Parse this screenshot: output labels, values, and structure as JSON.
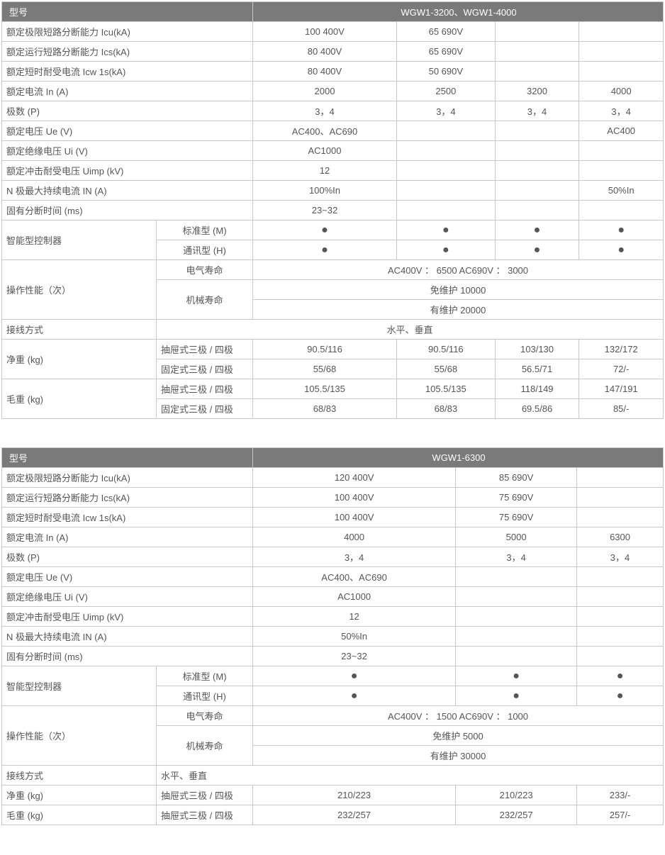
{
  "table1": {
    "header_label": "型号",
    "header_model": "WGW1-3200、WGW1-4000",
    "rows": {
      "icu_label": "额定极限短路分断能力 Icu(kA)",
      "icu": [
        "100   400V",
        "65   690V",
        "",
        ""
      ],
      "ics_label": "额定运行短路分断能力 Ics(kA)",
      "ics": [
        "80   400V",
        "65  690V",
        "",
        ""
      ],
      "icw_label": "额定短时耐受电流 Icw 1s(kA)",
      "icw": [
        "80   400V",
        "50   690V",
        "",
        ""
      ],
      "in_label": "额定电流 In (A)",
      "in": [
        "2000",
        "2500",
        "3200",
        "4000"
      ],
      "poles_label": "极数 (P)",
      "poles": [
        "3，4",
        "3，4",
        "3，4",
        "3，4"
      ],
      "ue_label": "额定电压 Ue (V)",
      "ue": [
        "AC400、AC690",
        "",
        "",
        "AC400"
      ],
      "ui_label": "额定绝缘电压 Ui (V)",
      "ui": [
        "AC1000",
        "",
        "",
        ""
      ],
      "uimp_label": "额定冲击耐受电压 Uimp (kV)",
      "uimp": [
        "12",
        "",
        "",
        ""
      ],
      "in_n_label": "N 极最大持续电流 IN (A)",
      "in_n": [
        "100%In",
        "",
        "",
        "50%In"
      ],
      "break_time_label": "固有分断时间 (ms)",
      "break_time": [
        "23~32",
        "",
        "",
        ""
      ],
      "controller_label": "智能型控制器",
      "controller_std_label": "标准型 (M)",
      "controller_std": [
        "●",
        "●",
        "●",
        "●"
      ],
      "controller_comm_label": "通讯型 (H)",
      "controller_comm": [
        "●",
        "●",
        "●",
        "●"
      ],
      "perf_label": "操作性能（次）",
      "elec_life_label": "电气寿命",
      "elec_life": "AC400V ： 6500    AC690V ： 3000",
      "mech_life_label": "机械寿命",
      "mech_life1": "免维护 10000",
      "mech_life2": "有维护 20000",
      "wiring_label": "接线方式",
      "wiring": "水平、垂直",
      "net_wt_label": "净重 (kg)",
      "net_wt_drawer_label": "抽屉式三极 / 四极",
      "net_wt_drawer": [
        "90.5/116",
        "90.5/116",
        "103/130",
        "132/172"
      ],
      "net_wt_fixed_label": "固定式三极 / 四极",
      "net_wt_fixed": [
        "55/68",
        "55/68",
        "56.5/71",
        "72/-"
      ],
      "gross_wt_label": "毛重 (kg)",
      "gross_wt_drawer_label": "抽屉式三极 / 四极",
      "gross_wt_drawer": [
        "105.5/135",
        "105.5/135",
        "118/149",
        "147/191"
      ],
      "gross_wt_fixed_label": "固定式三极 / 四极",
      "gross_wt_fixed": [
        "68/83",
        "68/83",
        "69.5/86",
        "85/-"
      ]
    }
  },
  "table2": {
    "header_label": "型号",
    "header_model": "WGW1-6300",
    "rows": {
      "icu_label": "额定极限短路分断能力 Icu(kA)",
      "icu": [
        "120   400V",
        "85   690V",
        ""
      ],
      "ics_label": "额定运行短路分断能力 Ics(kA)",
      "ics": [
        "100   400V",
        "75   690V",
        ""
      ],
      "icw_label": "额定短时耐受电流 Icw 1s(kA)",
      "icw": [
        "100   400V",
        "75   690V",
        ""
      ],
      "in_label": "额定电流 In (A)",
      "in": [
        "4000",
        "5000",
        "6300"
      ],
      "poles_label": "极数 (P)",
      "poles": [
        "3，4",
        "3，4",
        "3，4"
      ],
      "ue_label": "额定电压 Ue (V)",
      "ue": [
        "AC400、AC690",
        "",
        ""
      ],
      "ui_label": "额定绝缘电压 Ui (V)",
      "ui": [
        "AC1000",
        "",
        ""
      ],
      "uimp_label": "额定冲击耐受电压 Uimp (kV)",
      "uimp": [
        "12",
        "",
        ""
      ],
      "in_n_label": "N 极最大持续电流 IN (A)",
      "in_n": [
        "50%In",
        "",
        ""
      ],
      "break_time_label": "固有分断时间 (ms)",
      "break_time": [
        "23~32",
        "",
        ""
      ],
      "controller_label": "智能型控制器",
      "controller_std_label": "标准型 (M)",
      "controller_std": [
        "●",
        "●",
        "●"
      ],
      "controller_comm_label": "通讯型 (H)",
      "controller_comm": [
        "●",
        "●",
        "●"
      ],
      "perf_label": "操作性能（次）",
      "elec_life_label": "电气寿命",
      "elec_life": "AC400V ： 1500    AC690V ： 1000",
      "mech_life_label": "机械寿命",
      "mech_life1": "免维护 5000",
      "mech_life2": "有维护 30000",
      "wiring_label": "接线方式",
      "wiring": "水平、垂直",
      "net_wt_label": "净重 (kg)",
      "net_wt_drawer_label": "抽屉式三极 / 四极",
      "net_wt_drawer": [
        "210/223",
        "210/223",
        "233/-"
      ],
      "gross_wt_label": "毛重 (kg)",
      "gross_wt_drawer_label": "抽屉式三极 / 四极",
      "gross_wt_drawer": [
        "232/257",
        "232/257",
        "257/-"
      ]
    }
  }
}
